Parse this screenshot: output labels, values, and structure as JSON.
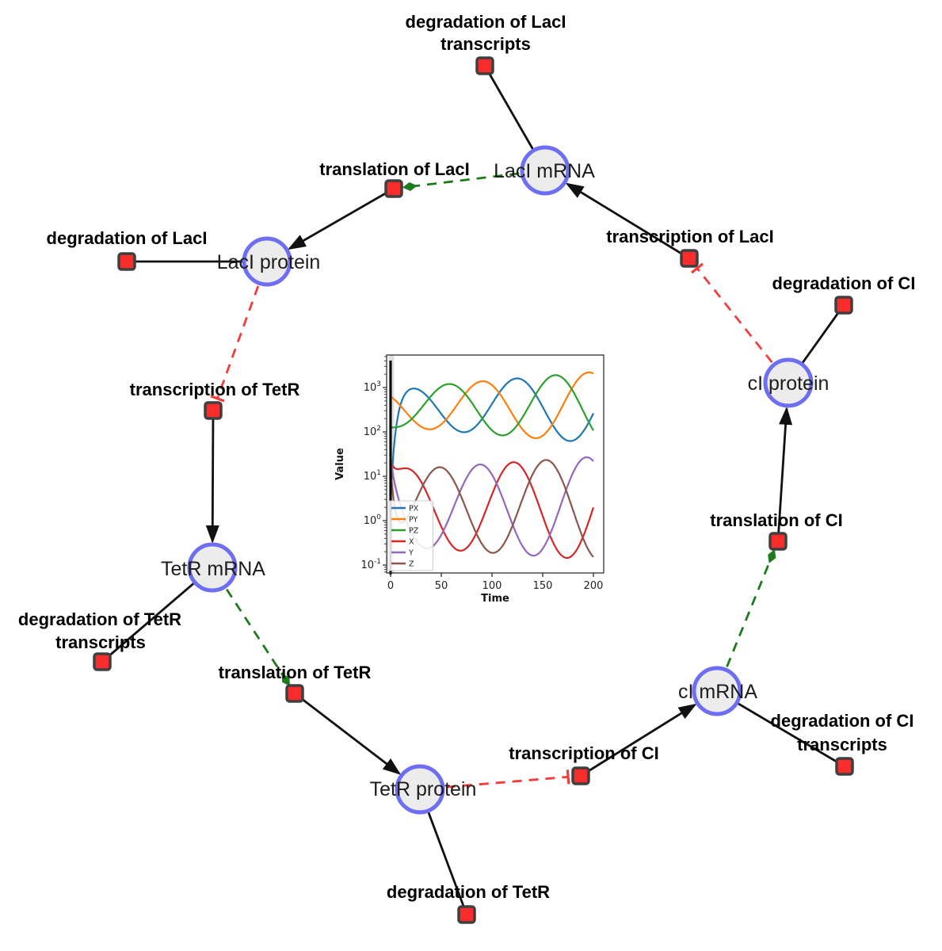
{
  "network": {
    "species": [
      {
        "label": "LacI mRNA"
      },
      {
        "label": "LacI protein"
      },
      {
        "label": "TetR mRNA"
      },
      {
        "label": "TetR protein"
      },
      {
        "label": "cI mRNA"
      },
      {
        "label": "cI protein"
      }
    ],
    "reactions": [
      {
        "lines": [
          "degradation of LacI",
          "transcripts"
        ]
      },
      {
        "lines": [
          "translation of LacI"
        ]
      },
      {
        "lines": [
          "transcription of LacI"
        ]
      },
      {
        "lines": [
          "degradation of LacI"
        ]
      },
      {
        "lines": [
          "transcription of TetR"
        ]
      },
      {
        "lines": [
          "degradation of CI"
        ]
      },
      {
        "lines": [
          "translation of CI"
        ]
      },
      {
        "lines": [
          "degradation of CI",
          "transcripts"
        ]
      },
      {
        "lines": [
          "transcription of CI"
        ]
      },
      {
        "lines": [
          "degradation of TetR"
        ]
      },
      {
        "lines": [
          "translation of TetR"
        ]
      },
      {
        "lines": [
          "degradation of TetR",
          "transcripts"
        ]
      }
    ],
    "colors": {
      "species_fill": "#ececec",
      "species_border": "#6e6ef2",
      "reaction_fill": "#f92c2c",
      "reaction_border": "#3f3f3f",
      "edge_black": "#111111",
      "modifier_green": "#1d7a1d",
      "inhibition_red": "#f23d3d"
    }
  },
  "chart_data": {
    "type": "line",
    "title": "",
    "xlabel": "Time",
    "ylabel": "Value",
    "x_range": [
      0,
      200
    ],
    "y_scale": "log",
    "y_range_exponents": [
      -1.2,
      3.73
    ],
    "x_ticks": [
      0,
      50,
      100,
      150,
      200
    ],
    "y_tick_exponents": [
      -1,
      0,
      1,
      2,
      3
    ],
    "grid": false,
    "legend_position": "lower left",
    "annotations": {
      "vertical_line_x": 0,
      "shaded_band_x": [
        0,
        3
      ]
    },
    "model": {
      "period": 105,
      "transient_tau": 5,
      "protein": {
        "log_mean": 2.55,
        "log_amp_start": 0.42,
        "log_amp_end": 0.8
      },
      "mrna": {
        "log_mean": 0.28,
        "log_amp_start": 0.85,
        "log_amp_end": 1.16
      }
    },
    "series": [
      {
        "name": "PX",
        "color": "#1f77b4",
        "group": "protein",
        "peak_t": 124,
        "peak_times": [
          20,
          124
        ],
        "start_log": 0.5,
        "approx_range": [
          60,
          2200
        ]
      },
      {
        "name": "PY",
        "color": "#ff7f0e",
        "group": "protein",
        "peak_t": 90,
        "peak_times": [
          90,
          195
        ],
        "start_log": 2.8,
        "approx_range": [
          60,
          2200
        ]
      },
      {
        "name": "PZ",
        "color": "#2ca02c",
        "group": "protein",
        "peak_t": 57,
        "peak_times": [
          57,
          162
        ],
        "start_log": 2.1,
        "approx_range": [
          60,
          2100
        ]
      },
      {
        "name": "X",
        "color": "#d62728",
        "group": "mrna",
        "peak_t": 121,
        "peak_times": [
          16,
          121
        ],
        "start_log": 1.35,
        "approx_range": [
          0.12,
          28
        ]
      },
      {
        "name": "Y",
        "color": "#9467bd",
        "group": "mrna",
        "peak_t": 88,
        "peak_times": [
          88,
          193
        ],
        "start_log": 1.4,
        "approx_range": [
          0.12,
          28
        ]
      },
      {
        "name": "Z",
        "color": "#8c564b",
        "group": "mrna",
        "peak_t": 153,
        "peak_times": [
          48,
          153
        ],
        "start_log": 1.2,
        "approx_range": [
          0.12,
          28
        ]
      }
    ]
  }
}
